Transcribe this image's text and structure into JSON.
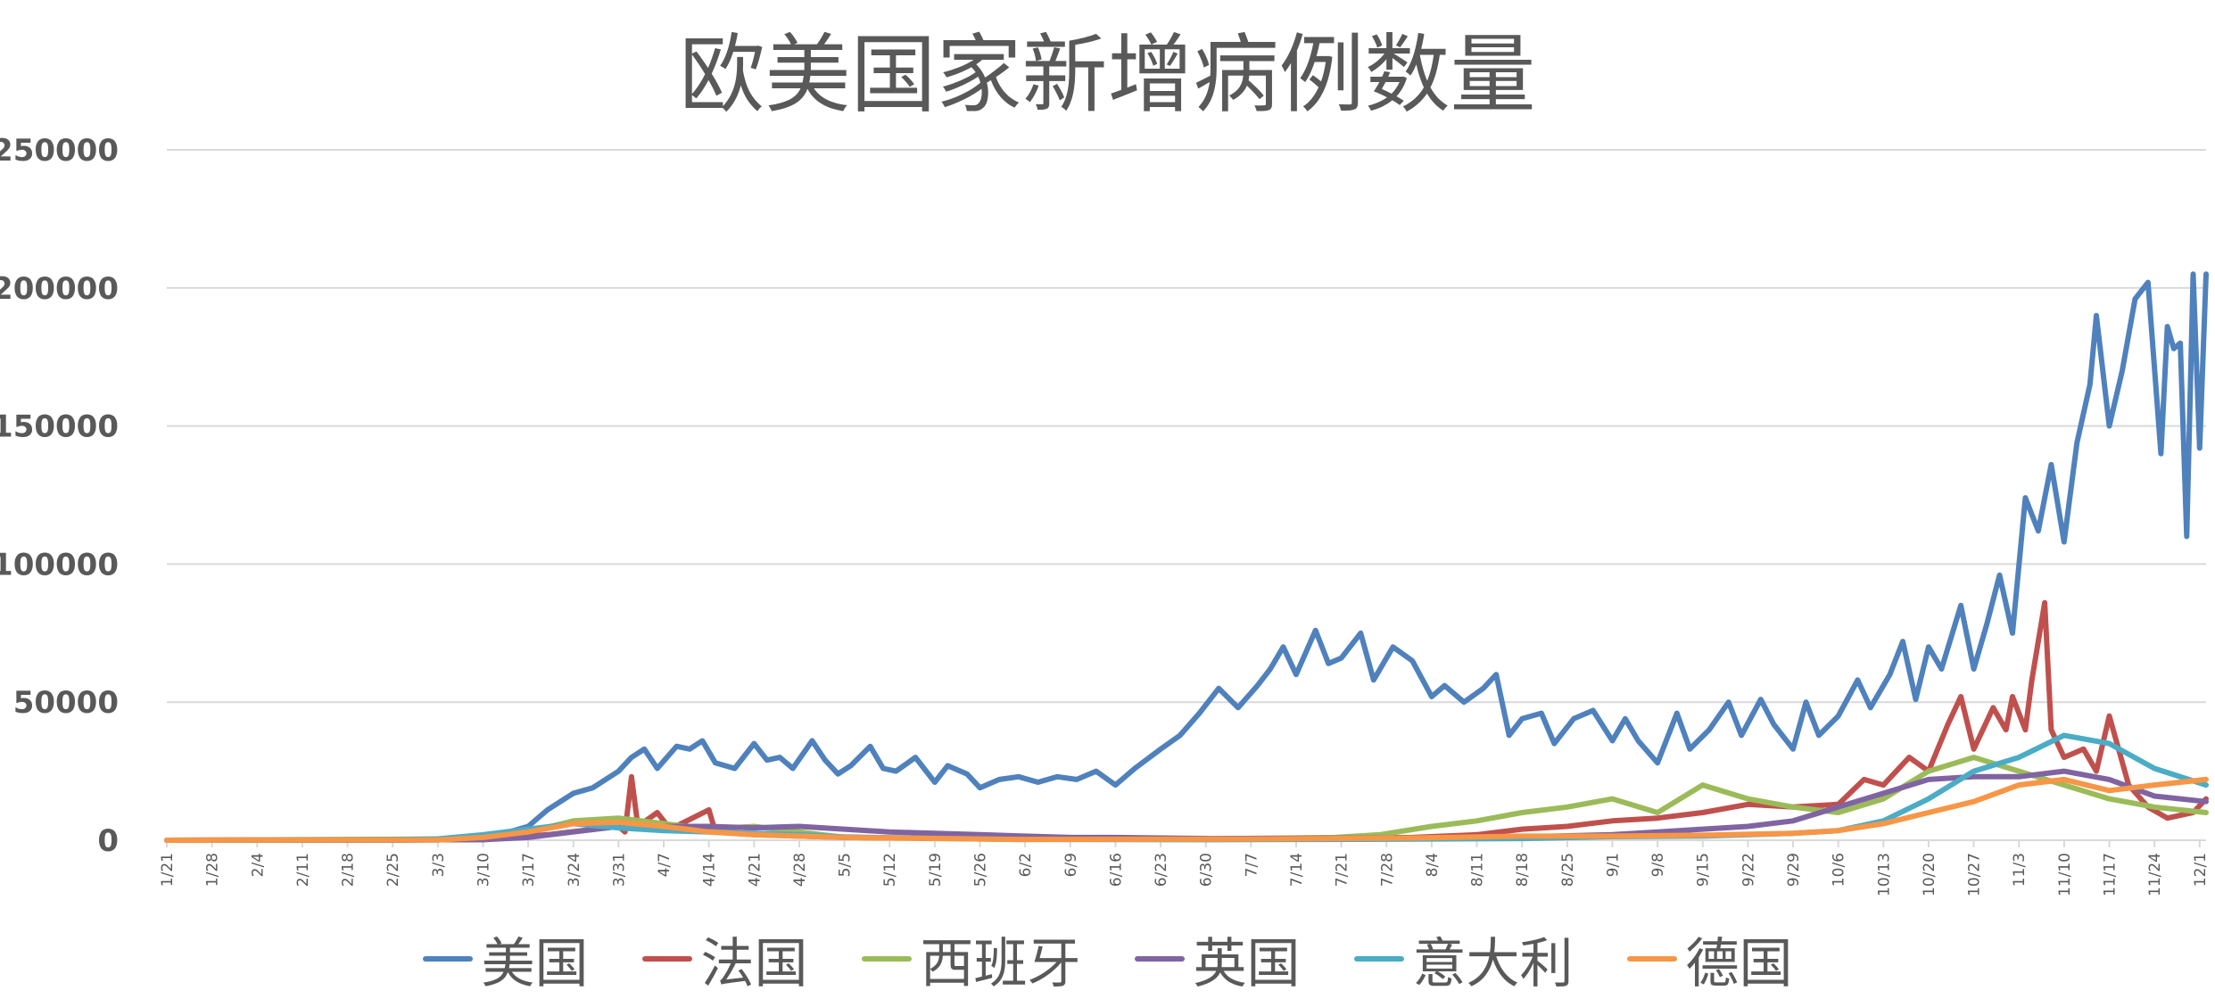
{
  "chart_data": {
    "type": "line",
    "title": "欧美国家新增病例数量",
    "ylim": [
      0,
      250000
    ],
    "yticks": [
      0,
      50000,
      100000,
      150000,
      200000,
      250000
    ],
    "ytick_labels": [
      "0",
      "50000",
      "100000",
      "150000",
      "200000",
      "250000"
    ],
    "x_start": "1/21",
    "x_end": "12/2",
    "xtick_labels": [
      "1/21",
      "1/28",
      "2/4",
      "2/11",
      "2/18",
      "2/25",
      "3/3",
      "3/10",
      "3/17",
      "3/24",
      "3/31",
      "4/7",
      "4/14",
      "4/21",
      "4/28",
      "5/5",
      "5/12",
      "5/19",
      "5/26",
      "6/2",
      "6/9",
      "6/16",
      "6/23",
      "6/30",
      "7/7",
      "7/14",
      "7/21",
      "7/28",
      "8/4",
      "8/11",
      "8/18",
      "8/25",
      "9/1",
      "9/8",
      "9/15",
      "9/22",
      "9/29",
      "10/6",
      "10/13",
      "10/20",
      "10/27",
      "11/3",
      "11/10",
      "11/17",
      "11/24",
      "12/1"
    ],
    "grid": true,
    "legend_position": "bottom",
    "series": [
      {
        "name": "美国",
        "color": "#4f81bd",
        "points": [
          [
            "1/21",
            0
          ],
          [
            "2/25",
            0
          ],
          [
            "3/10",
            300
          ],
          [
            "3/17",
            5000
          ],
          [
            "3/20",
            11000
          ],
          [
            "3/24",
            17000
          ],
          [
            "3/27",
            19000
          ],
          [
            "3/31",
            25000
          ],
          [
            "4/2",
            30000
          ],
          [
            "4/4",
            33000
          ],
          [
            "4/6",
            26000
          ],
          [
            "4/9",
            34000
          ],
          [
            "4/11",
            33000
          ],
          [
            "4/13",
            36000
          ],
          [
            "4/15",
            28000
          ],
          [
            "4/18",
            26000
          ],
          [
            "4/21",
            35000
          ],
          [
            "4/23",
            29000
          ],
          [
            "4/25",
            30000
          ],
          [
            "4/27",
            26000
          ],
          [
            "4/30",
            36000
          ],
          [
            "5/2",
            29000
          ],
          [
            "5/4",
            24000
          ],
          [
            "5/6",
            27000
          ],
          [
            "5/9",
            34000
          ],
          [
            "5/11",
            26000
          ],
          [
            "5/13",
            25000
          ],
          [
            "5/16",
            30000
          ],
          [
            "5/19",
            21000
          ],
          [
            "5/21",
            27000
          ],
          [
            "5/24",
            24000
          ],
          [
            "5/26",
            19000
          ],
          [
            "5/29",
            22000
          ],
          [
            "6/1",
            23000
          ],
          [
            "6/4",
            21000
          ],
          [
            "6/7",
            23000
          ],
          [
            "6/10",
            22000
          ],
          [
            "6/13",
            25000
          ],
          [
            "6/16",
            20000
          ],
          [
            "6/19",
            26000
          ],
          [
            "6/23",
            33000
          ],
          [
            "6/26",
            38000
          ],
          [
            "6/29",
            46000
          ],
          [
            "7/2",
            55000
          ],
          [
            "7/5",
            48000
          ],
          [
            "7/8",
            56000
          ],
          [
            "7/10",
            62000
          ],
          [
            "7/12",
            70000
          ],
          [
            "7/14",
            60000
          ],
          [
            "7/17",
            76000
          ],
          [
            "7/19",
            64000
          ],
          [
            "7/21",
            66000
          ],
          [
            "7/24",
            75000
          ],
          [
            "7/26",
            58000
          ],
          [
            "7/29",
            70000
          ],
          [
            "8/1",
            65000
          ],
          [
            "8/4",
            52000
          ],
          [
            "8/6",
            56000
          ],
          [
            "8/9",
            50000
          ],
          [
            "8/12",
            55000
          ],
          [
            "8/14",
            60000
          ],
          [
            "8/16",
            38000
          ],
          [
            "8/18",
            44000
          ],
          [
            "8/21",
            46000
          ],
          [
            "8/23",
            35000
          ],
          [
            "8/26",
            44000
          ],
          [
            "8/29",
            47000
          ],
          [
            "9/1",
            36000
          ],
          [
            "9/3",
            44000
          ],
          [
            "9/5",
            36000
          ],
          [
            "9/8",
            28000
          ],
          [
            "9/11",
            46000
          ],
          [
            "9/13",
            33000
          ],
          [
            "9/16",
            40000
          ],
          [
            "9/19",
            50000
          ],
          [
            "9/21",
            38000
          ],
          [
            "9/24",
            51000
          ],
          [
            "9/26",
            42000
          ],
          [
            "9/29",
            33000
          ],
          [
            "10/1",
            50000
          ],
          [
            "10/3",
            38000
          ],
          [
            "10/6",
            45000
          ],
          [
            "10/9",
            58000
          ],
          [
            "10/11",
            48000
          ],
          [
            "10/14",
            60000
          ],
          [
            "10/16",
            72000
          ],
          [
            "10/18",
            51000
          ],
          [
            "10/20",
            70000
          ],
          [
            "10/22",
            62000
          ],
          [
            "10/25",
            85000
          ],
          [
            "10/27",
            62000
          ],
          [
            "10/29",
            78000
          ],
          [
            "10/31",
            96000
          ],
          [
            "11/2",
            75000
          ],
          [
            "11/4",
            124000
          ],
          [
            "11/6",
            112000
          ],
          [
            "11/8",
            136000
          ],
          [
            "11/10",
            108000
          ],
          [
            "11/12",
            144000
          ],
          [
            "11/14",
            165000
          ],
          [
            "11/15",
            190000
          ],
          [
            "11/17",
            150000
          ],
          [
            "11/19",
            170000
          ],
          [
            "11/21",
            196000
          ],
          [
            "11/23",
            202000
          ],
          [
            "11/25",
            140000
          ],
          [
            "11/26",
            186000
          ],
          [
            "11/27",
            178000
          ],
          [
            "11/28",
            180000
          ],
          [
            "11/29",
            110000
          ],
          [
            "11/30",
            205000
          ],
          [
            "12/1",
            142000
          ],
          [
            "12/2",
            205000
          ]
        ]
      },
      {
        "name": "法国",
        "color": "#c0504d",
        "points": [
          [
            "1/21",
            0
          ],
          [
            "3/10",
            200
          ],
          [
            "3/20",
            2000
          ],
          [
            "3/31",
            5000
          ],
          [
            "4/1",
            3000
          ],
          [
            "4/2",
            23000
          ],
          [
            "4/3",
            5000
          ],
          [
            "4/6",
            10000
          ],
          [
            "4/8",
            4000
          ],
          [
            "4/14",
            11000
          ],
          [
            "4/15",
            3000
          ],
          [
            "4/21",
            2000
          ],
          [
            "5/5",
            1000
          ],
          [
            "6/1",
            500
          ],
          [
            "7/1",
            500
          ],
          [
            "8/1",
            1000
          ],
          [
            "8/11",
            2000
          ],
          [
            "8/18",
            4000
          ],
          [
            "8/25",
            5000
          ],
          [
            "9/1",
            7000
          ],
          [
            "9/8",
            8000
          ],
          [
            "9/15",
            10000
          ],
          [
            "9/22",
            13000
          ],
          [
            "9/29",
            12000
          ],
          [
            "10/6",
            13000
          ],
          [
            "10/10",
            22000
          ],
          [
            "10/13",
            20000
          ],
          [
            "10/17",
            30000
          ],
          [
            "10/20",
            25000
          ],
          [
            "10/23",
            42000
          ],
          [
            "10/25",
            52000
          ],
          [
            "10/27",
            33000
          ],
          [
            "10/30",
            48000
          ],
          [
            "11/1",
            40000
          ],
          [
            "11/2",
            52000
          ],
          [
            "11/4",
            40000
          ],
          [
            "11/5",
            58000
          ],
          [
            "11/7",
            86000
          ],
          [
            "11/8",
            40000
          ],
          [
            "11/10",
            30000
          ],
          [
            "11/13",
            33000
          ],
          [
            "11/15",
            25000
          ],
          [
            "11/17",
            45000
          ],
          [
            "11/20",
            20000
          ],
          [
            "11/23",
            12000
          ],
          [
            "11/26",
            8000
          ],
          [
            "11/30",
            10000
          ],
          [
            "12/2",
            15000
          ]
        ]
      },
      {
        "name": "西班牙",
        "color": "#9bbb59",
        "points": [
          [
            "1/21",
            0
          ],
          [
            "3/10",
            500
          ],
          [
            "3/17",
            3000
          ],
          [
            "3/24",
            7000
          ],
          [
            "3/31",
            8000
          ],
          [
            "4/7",
            6000
          ],
          [
            "4/14",
            4000
          ],
          [
            "4/21",
            5000
          ],
          [
            "5/5",
            1000
          ],
          [
            "6/1",
            500
          ],
          [
            "7/1",
            500
          ],
          [
            "7/20",
            1000
          ],
          [
            "7/27",
            2000
          ],
          [
            "8/4",
            5000
          ],
          [
            "8/11",
            7000
          ],
          [
            "8/18",
            10000
          ],
          [
            "8/25",
            12000
          ],
          [
            "9/1",
            15000
          ],
          [
            "9/8",
            10000
          ],
          [
            "9/15",
            20000
          ],
          [
            "9/22",
            15000
          ],
          [
            "9/29",
            12000
          ],
          [
            "10/6",
            10000
          ],
          [
            "10/13",
            15000
          ],
          [
            "10/20",
            25000
          ],
          [
            "10/27",
            30000
          ],
          [
            "11/3",
            25000
          ],
          [
            "11/10",
            20000
          ],
          [
            "11/17",
            15000
          ],
          [
            "11/24",
            12000
          ],
          [
            "12/2",
            10000
          ]
        ]
      },
      {
        "name": "英国",
        "color": "#8064a2",
        "points": [
          [
            "1/21",
            0
          ],
          [
            "3/10",
            200
          ],
          [
            "3/17",
            1000
          ],
          [
            "3/24",
            3000
          ],
          [
            "3/31",
            5000
          ],
          [
            "4/7",
            5000
          ],
          [
            "4/14",
            5000
          ],
          [
            "4/21",
            4500
          ],
          [
            "4/28",
            5000
          ],
          [
            "5/5",
            4000
          ],
          [
            "5/12",
            3000
          ],
          [
            "5/19",
            2500
          ],
          [
            "5/26",
            2000
          ],
          [
            "6/2",
            1500
          ],
          [
            "6/9",
            1000
          ],
          [
            "6/16",
            1000
          ],
          [
            "7/1",
            600
          ],
          [
            "8/1",
            800
          ],
          [
            "8/18",
            1200
          ],
          [
            "9/1",
            2000
          ],
          [
            "9/8",
            3000
          ],
          [
            "9/15",
            4000
          ],
          [
            "9/22",
            5000
          ],
          [
            "9/29",
            7000
          ],
          [
            "10/6",
            12000
          ],
          [
            "10/13",
            17000
          ],
          [
            "10/20",
            22000
          ],
          [
            "10/27",
            23000
          ],
          [
            "11/3",
            23000
          ],
          [
            "11/10",
            25000
          ],
          [
            "11/17",
            22000
          ],
          [
            "11/24",
            16000
          ],
          [
            "12/2",
            14000
          ]
        ]
      },
      {
        "name": "意大利",
        "color": "#4bacc6",
        "points": [
          [
            "1/21",
            0
          ],
          [
            "2/25",
            200
          ],
          [
            "3/3",
            500
          ],
          [
            "3/10",
            2000
          ],
          [
            "3/17",
            4000
          ],
          [
            "3/24",
            6000
          ],
          [
            "3/31",
            4500
          ],
          [
            "4/7",
            3500
          ],
          [
            "4/14",
            3000
          ],
          [
            "4/21",
            2500
          ],
          [
            "4/28",
            2000
          ],
          [
            "5/5",
            1200
          ],
          [
            "5/12",
            900
          ],
          [
            "6/1",
            300
          ],
          [
            "7/1",
            200
          ],
          [
            "8/1",
            400
          ],
          [
            "8/18",
            600
          ],
          [
            "9/1",
            1300
          ],
          [
            "9/15",
            1500
          ],
          [
            "9/29",
            2500
          ],
          [
            "10/6",
            3500
          ],
          [
            "10/13",
            7000
          ],
          [
            "10/20",
            15000
          ],
          [
            "10/27",
            25000
          ],
          [
            "11/3",
            30000
          ],
          [
            "11/10",
            38000
          ],
          [
            "11/17",
            35000
          ],
          [
            "11/24",
            26000
          ],
          [
            "12/2",
            20000
          ]
        ]
      },
      {
        "name": "德国",
        "color": "#f79646",
        "points": [
          [
            "1/21",
            0
          ],
          [
            "3/3",
            100
          ],
          [
            "3/10",
            1000
          ],
          [
            "3/17",
            3000
          ],
          [
            "3/24",
            6000
          ],
          [
            "3/31",
            6500
          ],
          [
            "4/7",
            5000
          ],
          [
            "4/14",
            3000
          ],
          [
            "4/21",
            2000
          ],
          [
            "4/28",
            1500
          ],
          [
            "5/5",
            1000
          ],
          [
            "6/1",
            300
          ],
          [
            "7/1",
            400
          ],
          [
            "8/1",
            800
          ],
          [
            "8/18",
            1500
          ],
          [
            "9/1",
            1500
          ],
          [
            "9/15",
            1800
          ],
          [
            "9/29",
            2500
          ],
          [
            "10/6",
            3500
          ],
          [
            "10/13",
            6000
          ],
          [
            "10/20",
            10000
          ],
          [
            "10/27",
            14000
          ],
          [
            "11/3",
            20000
          ],
          [
            "11/10",
            22000
          ],
          [
            "11/17",
            18000
          ],
          [
            "11/24",
            20000
          ],
          [
            "12/2",
            22000
          ]
        ]
      }
    ]
  }
}
